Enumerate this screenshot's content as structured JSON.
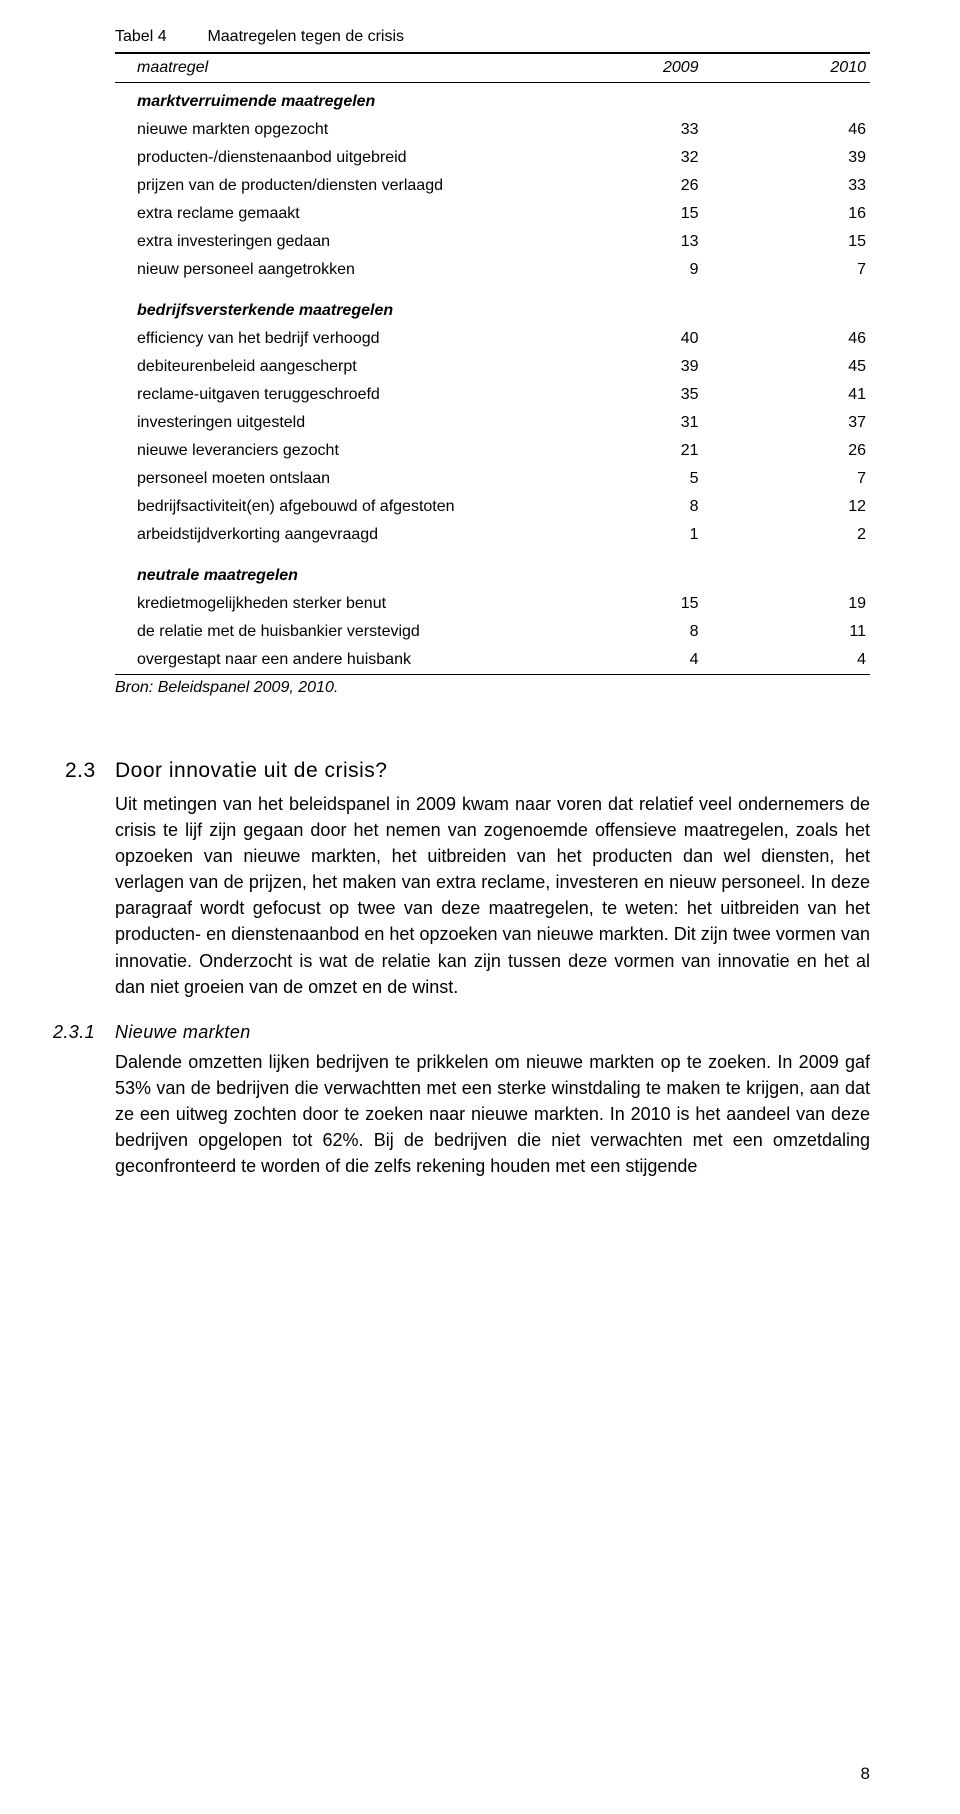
{
  "table": {
    "caption_label": "Tabel 4",
    "caption_title": "Maatregelen tegen de crisis",
    "header": {
      "col0": "maatregel",
      "col1": "2009",
      "col2": "2010"
    },
    "border_color": "#000000",
    "font_size_pt": 12,
    "sections": [
      {
        "title": "marktverruimende maatregelen",
        "rows": [
          {
            "label": "nieuwe markten opgezocht",
            "v1": "33",
            "v2": "46"
          },
          {
            "label": "producten-/dienstenaanbod uitgebreid",
            "v1": "32",
            "v2": "39"
          },
          {
            "label": "prijzen van de producten/diensten verlaagd",
            "v1": "26",
            "v2": "33"
          },
          {
            "label": "extra reclame gemaakt",
            "v1": "15",
            "v2": "16"
          },
          {
            "label": "extra investeringen gedaan",
            "v1": "13",
            "v2": "15"
          },
          {
            "label": "nieuw personeel aangetrokken",
            "v1": "9",
            "v2": "7"
          }
        ]
      },
      {
        "title": "bedrijfsversterkende maatregelen",
        "rows": [
          {
            "label": "efficiency van het bedrijf verhoogd",
            "v1": "40",
            "v2": "46"
          },
          {
            "label": "debiteurenbeleid aangescherpt",
            "v1": "39",
            "v2": "45"
          },
          {
            "label": "reclame-uitgaven teruggeschroefd",
            "v1": "35",
            "v2": "41"
          },
          {
            "label": "investeringen uitgesteld",
            "v1": "31",
            "v2": "37"
          },
          {
            "label": "nieuwe leveranciers gezocht",
            "v1": "21",
            "v2": "26"
          },
          {
            "label": "personeel moeten ontslaan",
            "v1": "5",
            "v2": "7"
          },
          {
            "label": "bedrijfsactiviteit(en) afgebouwd of afgestoten",
            "v1": "8",
            "v2": "12"
          },
          {
            "label": "arbeidstijdverkorting aangevraagd",
            "v1": "1",
            "v2": "2"
          }
        ]
      },
      {
        "title": "neutrale maatregelen",
        "rows": [
          {
            "label": "kredietmogelijkheden sterker benut",
            "v1": "15",
            "v2": "19"
          },
          {
            "label": "de relatie met de huisbankier verstevigd",
            "v1": "8",
            "v2": "11"
          },
          {
            "label": "overgestapt naar een andere huisbank",
            "v1": "4",
            "v2": "4"
          }
        ]
      }
    ],
    "source": "Bron: Beleidspanel 2009, 2010."
  },
  "sec23": {
    "num": "2.3",
    "title": "Door innovatie uit de crisis?",
    "body": "Uit metingen van het beleidspanel in 2009 kwam naar voren dat relatief veel ondernemers de crisis te lijf zijn gegaan door het nemen van zogenoemde offensieve maatregelen, zoals het opzoeken van nieuwe markten, het uitbreiden van het producten dan wel diensten, het verlagen van de prijzen, het maken van extra reclame, investeren en nieuw personeel. In deze paragraaf wordt gefocust op twee van deze maatregelen, te weten: het uitbreiden van het producten- en dienstenaanbod en het opzoeken van nieuwe markten. Dit zijn twee vormen van innovatie. Onderzocht is wat de relatie kan zijn tussen deze vormen van innovatie en het al dan niet groeien van de omzet en de winst."
  },
  "sec231": {
    "num": "2.3.1",
    "title": "Nieuwe markten",
    "body": "Dalende omzetten lijken bedrijven te prikkelen om nieuwe markten op te zoeken. In 2009 gaf 53% van de bedrijven die verwachtten met een sterke winstdaling te maken te krijgen, aan dat ze een uitweg zochten door te zoeken naar nieuwe markten. In 2010 is het aandeel van deze bedrijven opgelopen tot 62%. Bij de bedrijven die niet verwachten met een omzetdaling geconfronteerd te worden of die zelfs rekening houden met een stijgende"
  },
  "page_number": "8",
  "colors": {
    "text": "#000000",
    "background": "#ffffff"
  }
}
